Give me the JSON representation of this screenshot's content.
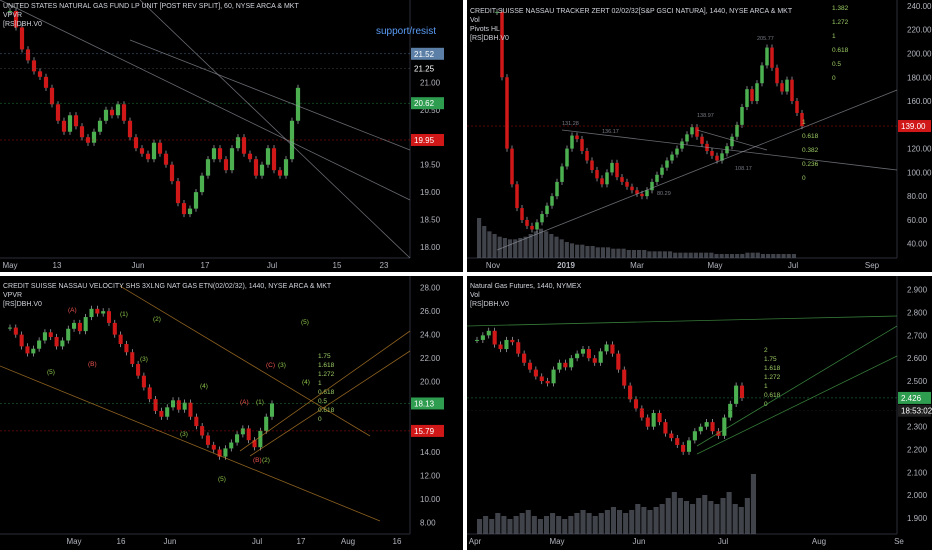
{
  "panes": [
    {
      "id": "p1",
      "title": "UNITED STATES NATURAL GAS FUND LP UNIT [POST REV SPLIT], 60, NYSE ARCA & MKT",
      "indicators": [
        "VPVR",
        "[RS]DBH.V0"
      ],
      "annotation": "support/resist",
      "chart_data": {
        "type": "candlestick",
        "ylim": [
          17.8,
          22.5
        ],
        "y_ticks": [
          18.0,
          18.5,
          19.0,
          19.5,
          20.5,
          21.0
        ],
        "x_ticks": [
          "May",
          "13",
          "Jun",
          "17",
          "Jul",
          "15",
          "23"
        ],
        "price_labels": [
          {
            "value": "21.52",
            "color": "#5b7fa6",
            "y": 21.52
          },
          {
            "value": "21.25",
            "color": "#000000",
            "y": 21.25
          },
          {
            "value": "20.62",
            "color": "#2e9d4f",
            "y": 20.62
          },
          {
            "value": "19.95",
            "color": "#d01818",
            "y": 19.95
          }
        ],
        "series": [
          {
            "values": [
              22.3,
              22.0,
              21.6,
              21.4,
              21.2,
              21.1,
              20.9,
              20.6,
              20.3,
              20.1,
              20.4,
              20.2,
              20.0,
              19.9,
              20.1,
              20.3,
              20.5,
              20.4,
              20.6,
              20.3,
              20.0,
              19.8,
              19.7,
              19.6,
              19.9,
              19.7,
              19.5,
              19.2,
              18.8,
              18.6,
              18.7,
              19.0,
              19.3,
              19.6,
              19.8,
              19.6,
              19.4,
              19.8,
              20.0,
              19.7,
              19.6,
              19.3,
              19.5,
              19.8,
              19.4,
              19.3,
              19.6,
              20.3,
              20.9
            ]
          }
        ]
      }
    },
    {
      "id": "p2",
      "title": "CREDIT SUISSE NASSAU TRACKER ZERT 02/02/32[S&P GSCI NATURA], 1440, NYSE ARCA & MKT",
      "indicators": [
        "Vol",
        "Pivots HL",
        "[RS]DBH.V0"
      ],
      "annotation": "",
      "chart_data": {
        "type": "candlestick",
        "ylim": [
          28,
          245
        ],
        "y_ticks": [
          40.0,
          60.0,
          80.0,
          100.0,
          120.0,
          160.0,
          180.0,
          200.0,
          220.0,
          240.0
        ],
        "x_ticks": [
          "Nov",
          "2019",
          "Mar",
          "May",
          "Jul",
          "Sep"
        ],
        "price_labels": [
          {
            "value": "139.00",
            "color": "#d01818",
            "y": 139.0
          }
        ],
        "fib_labels": [
          "1.382",
          "1.272",
          "1",
          "0.618",
          "0.5",
          "0",
          "1",
          "0.618",
          "0.382",
          "0.236",
          "0"
        ],
        "pivot_labels": [
          "131.28",
          "136.17",
          "138.97",
          "205.77",
          "108.17",
          "80.29"
        ],
        "series": [
          {
            "values": [
              235,
              180,
              120,
              90,
              70,
              60,
              55,
              52,
              58,
              65,
              72,
              80,
              92,
              105,
              120,
              131,
              128,
              118,
              110,
              102,
              95,
              90,
              100,
              108,
              96,
              92,
              88,
              85,
              82,
              80,
              85,
              92,
              98,
              104,
              110,
              115,
              120,
              126,
              132,
              138,
              130,
              124,
              118,
              114,
              110,
              116,
              122,
              130,
              140,
              155,
              170,
              160,
              175,
              190,
              205,
              188,
              175,
              168,
              178,
              160,
              150,
              139
            ]
          }
        ],
        "volume": [
          30,
          24,
          20,
          18,
          16,
          15,
          14,
          14,
          15,
          16,
          18,
          20,
          22,
          20,
          18,
          16,
          14,
          12,
          11,
          10,
          10,
          9,
          9,
          8,
          8,
          8,
          7,
          7,
          7,
          6,
          6,
          6,
          6,
          5,
          5,
          5,
          5,
          5,
          4,
          4,
          4,
          4,
          4,
          4,
          4,
          4,
          3,
          3,
          3,
          3,
          3,
          3,
          4,
          4,
          4,
          3,
          3,
          3,
          3,
          3,
          3,
          3
        ]
      }
    },
    {
      "id": "p3",
      "title": "CREDIT SUISSE NASSAU VELOCITY SHS 3XLNG NAT GAS ETN(02/02/32), 1440, NYSE ARCA & MKT",
      "indicators": [
        "VPVR",
        "[RS]DBH.V0"
      ],
      "annotation": "",
      "chart_data": {
        "type": "candlestick",
        "ylim": [
          7.0,
          29.0
        ],
        "y_ticks": [
          8.0,
          10.0,
          12.0,
          14.0,
          16.0,
          18.0,
          20.0,
          22.0,
          24.0,
          26.0,
          28.0
        ],
        "x_ticks": [
          "May",
          "16",
          "Jun",
          "Jul",
          "17",
          "Aug",
          "16"
        ],
        "price_labels": [
          {
            "value": "18.13",
            "color": "#2e9d4f",
            "y": 18.13
          },
          {
            "value": "15.79",
            "color": "#d01818",
            "y": 15.79
          }
        ],
        "wave_labels": [
          "(A)",
          "(B)",
          "(1)",
          "(2)",
          "(3)",
          "(4)",
          "(5)",
          "(5)",
          "(A)",
          "(1)",
          "(B)",
          "(2)",
          "(3)",
          "(4)",
          "(5)",
          "(C)",
          "(3)"
        ],
        "fib_labels": [
          "1.75",
          "1.618",
          "1.272",
          "1",
          "0.618",
          "0.5",
          "0.618",
          "0"
        ],
        "series": [
          {
            "values": [
              24.6,
              24.0,
              23.0,
              22.4,
              22.8,
              23.5,
              24.2,
              23.8,
              23.0,
              23.5,
              24.5,
              25.0,
              24.3,
              25.5,
              26.2,
              25.8,
              26.0,
              25.0,
              24.0,
              23.2,
              22.5,
              21.5,
              20.5,
              19.5,
              18.5,
              17.5,
              17.0,
              17.8,
              18.4,
              17.6,
              18.2,
              17.0,
              16.2,
              15.4,
              14.6,
              14.2,
              13.6,
              14.3,
              14.8,
              15.5,
              16.0,
              15.0,
              14.4,
              15.8,
              17.0,
              18.13
            ]
          }
        ]
      }
    },
    {
      "id": "p4",
      "title": "Natural Gas Futures, 1440, NYMEX",
      "indicators": [
        "Vol",
        "[RS]DBH.V0"
      ],
      "annotation": "",
      "chart_data": {
        "type": "candlestick",
        "ylim": [
          1.83,
          2.96
        ],
        "y_ticks": [
          1.9,
          2.0,
          2.1,
          2.2,
          2.3,
          2.5,
          2.6,
          2.7,
          2.8,
          2.9
        ],
        "x_ticks": [
          "Apr",
          "May",
          "Jun",
          "Jul",
          "Aug",
          "Se"
        ],
        "price_labels": [
          {
            "value": "2.426",
            "color": "#2e9d4f",
            "y": 2.426
          },
          {
            "value": "18:53:02",
            "color": "#1e1e1e",
            "y": 2.37
          }
        ],
        "fib_labels": [
          "2",
          "1.75",
          "1.618",
          "1.272",
          "1",
          "0.618",
          "0"
        ],
        "series": [
          {
            "values": [
              2.68,
              2.7,
              2.72,
              2.66,
              2.64,
              2.68,
              2.67,
              2.62,
              2.58,
              2.55,
              2.52,
              2.5,
              2.49,
              2.55,
              2.58,
              2.56,
              2.6,
              2.62,
              2.64,
              2.6,
              2.58,
              2.63,
              2.66,
              2.62,
              2.55,
              2.48,
              2.42,
              2.38,
              2.34,
              2.3,
              2.36,
              2.32,
              2.27,
              2.25,
              2.22,
              2.19,
              2.24,
              2.28,
              2.3,
              2.32,
              2.28,
              2.26,
              2.34,
              2.4,
              2.48,
              2.426
            ]
          }
        ],
        "volume": [
          5,
          6,
          5,
          7,
          6,
          5,
          6,
          7,
          8,
          6,
          5,
          6,
          7,
          6,
          5,
          6,
          7,
          8,
          7,
          6,
          7,
          8,
          9,
          8,
          7,
          8,
          10,
          9,
          8,
          9,
          10,
          12,
          14,
          12,
          11,
          10,
          12,
          13,
          11,
          10,
          12,
          14,
          10,
          9,
          12,
          20
        ]
      }
    }
  ]
}
